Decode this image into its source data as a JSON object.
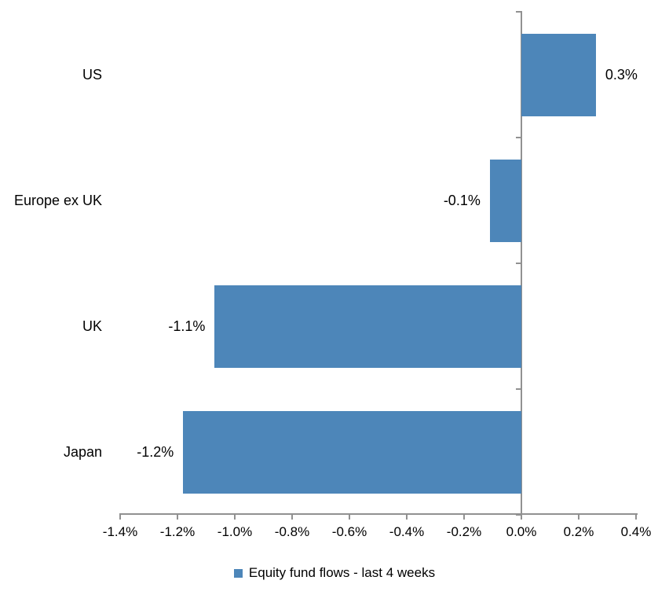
{
  "chart_data": {
    "type": "bar",
    "orientation": "horizontal",
    "title": "",
    "categories": [
      "US",
      "Europe ex UK",
      "UK",
      "Japan"
    ],
    "values": [
      0.26,
      -0.11,
      -1.07,
      -1.18
    ],
    "value_labels": [
      "0.3%",
      "-0.1%",
      "-1.1%",
      "-1.2%"
    ],
    "series": [
      {
        "name": "Equity fund flows - last 4 weeks",
        "values": [
          0.26,
          -0.11,
          -1.07,
          -1.18
        ]
      }
    ],
    "x_axis": {
      "xlim": [
        -1.4,
        0.4
      ],
      "ticks": [
        -1.4,
        -1.2,
        -1.0,
        -0.8,
        -0.6,
        -0.4,
        -0.2,
        0.0,
        0.2,
        0.4
      ],
      "tick_labels": [
        "-1.4%",
        "-1.2%",
        "-1.0%",
        "-0.8%",
        "-0.6%",
        "-0.4%",
        "-0.2%",
        "0.0%",
        "0.2%",
        "0.4%"
      ]
    },
    "grid": false,
    "legend": {
      "label": "Equity fund flows - last 4 weeks",
      "position": "bottom-center",
      "marker": "square"
    },
    "colors": {
      "bar": "#4D86B9",
      "axis": "#919191",
      "text": "#000000",
      "background": "#FFFFFF"
    }
  }
}
